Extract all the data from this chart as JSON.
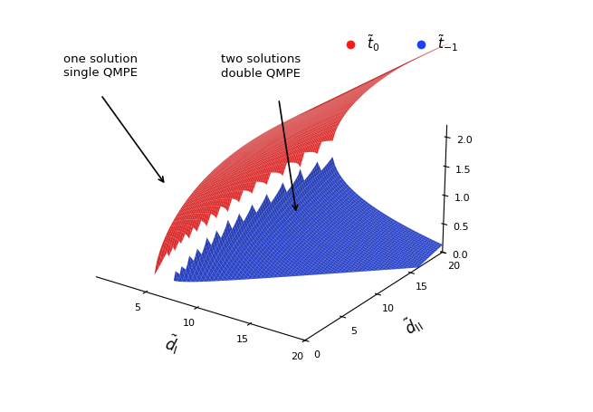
{
  "xlabel": "$\\tilde{d}_{\\mathrm{I}}$",
  "ylabel": "$\\tilde{d}_{\\mathrm{II}}$",
  "red_color": "#ff1a1a",
  "blue_color": "#1a3fff",
  "legend_t0": "$\\tilde{t}_0$",
  "legend_tm1": "$\\tilde{t}_{-1}$",
  "elev": 22,
  "azim": -55,
  "xticks": [
    5,
    10,
    15,
    20
  ],
  "yticks": [
    0,
    5,
    10,
    15,
    20
  ],
  "zticks": [
    0,
    0.5,
    1.0,
    1.5,
    2.0
  ],
  "xlim": [
    0,
    20
  ],
  "ylim": [
    0,
    20
  ],
  "zlim": [
    0,
    2.2
  ]
}
